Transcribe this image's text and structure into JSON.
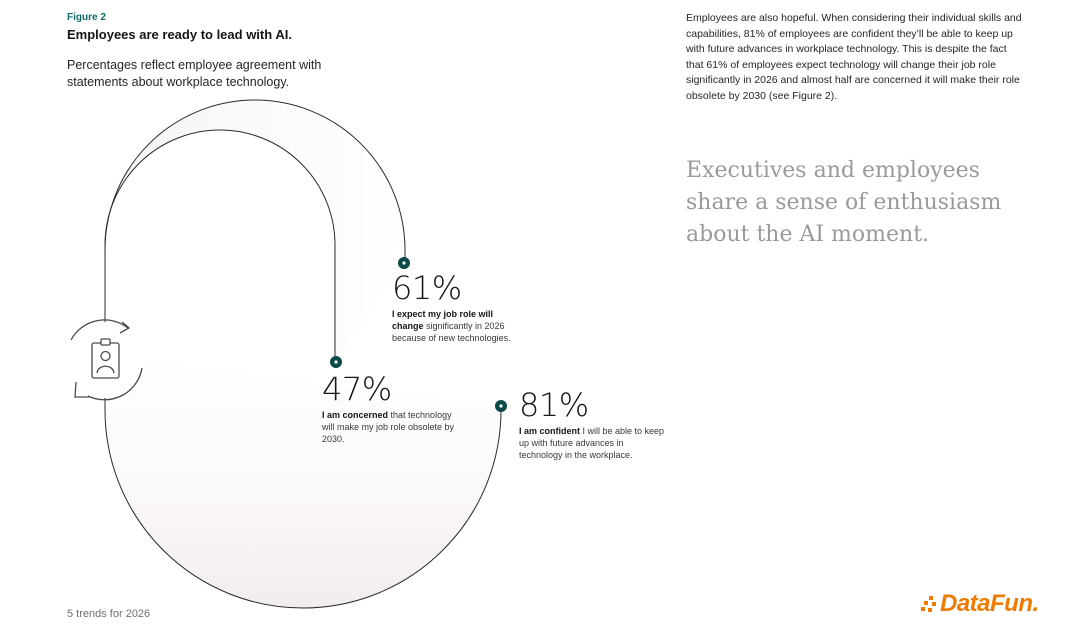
{
  "figure": {
    "label": "Figure 2",
    "title": "Employees are ready to lead with AI.",
    "subtitle": "Percentages reflect employee agreement with statements about workplace technology."
  },
  "stats": {
    "s61": {
      "value": "61%",
      "bold": "I expect my job role will change",
      "rest": " significantly in 2026 because of new technologies."
    },
    "s47": {
      "value": "47%",
      "bold": "I am concerned",
      "rest": " that technology will make my job role obsolete by 2030."
    },
    "s81": {
      "value": "81%",
      "bold": "I am confident",
      "rest": " I will be able to keep up with future advances in technology in the workplace."
    }
  },
  "body": {
    "intro": "Employees are also hopeful. When considering their individual skills and capabilities, 81% of employees are confident they’ll be able to keep up with future advances in workplace technology. This is despite the fact that 61% of employees expect technology will change their job role significantly in 2026 and almost half are concerned it will make their role obsolete by 2030 (see Figure 2).",
    "pull_quote": "Executives and employees share a sense of enthusiasm about the AI moment."
  },
  "footer": {
    "page_label": "5 trends for 2026"
  },
  "watermark": {
    "brand": "DataFun."
  },
  "colors": {
    "accent_teal": "#0f6b6b",
    "brand_orange": "#ef7c00",
    "dot": "#0b4a4a"
  },
  "icons": [
    "employee-badge-icon",
    "refresh-arrows-icon"
  ]
}
